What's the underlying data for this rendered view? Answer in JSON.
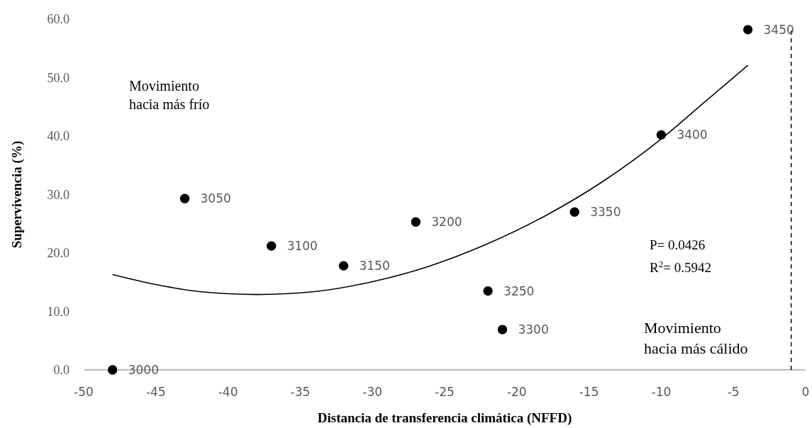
{
  "chart_data": {
    "type": "scatter",
    "xlabel": "Distancia de transferencia climática (NFFD)",
    "ylabel": "Supervivencia  (%)",
    "xlim": [
      -50,
      0
    ],
    "xticks": [
      -50,
      -45,
      -40,
      -35,
      -30,
      -25,
      -20,
      -15,
      -10,
      -5,
      0
    ],
    "ylim": [
      0,
      60
    ],
    "yticks": [
      {
        "value": 0,
        "label": "0.0"
      },
      {
        "value": 10,
        "label": "10.0"
      },
      {
        "value": 20,
        "label": "20.0"
      },
      {
        "value": 30,
        "label": "30.0"
      },
      {
        "value": 40,
        "label": "40.0"
      },
      {
        "value": 50,
        "label": "50.0"
      },
      {
        "value": 60,
        "label": "60.0"
      }
    ],
    "grid": false,
    "marker": "circle",
    "series": [
      {
        "color": "#000000",
        "x": [
          -48,
          -43,
          -37,
          -32,
          -27,
          -22,
          -21,
          -16,
          -10,
          -4
        ],
        "values": [
          0,
          29.3,
          21.2,
          17.8,
          25.3,
          13.5,
          6.9,
          27.0,
          40.2,
          58.2
        ]
      },
      {
        "type": "line",
        "color": "#000000",
        "marker": "none",
        "line_style": "solid",
        "x": [
          -48,
          -45,
          -42,
          -38,
          -34,
          -30,
          -26,
          -22,
          -18,
          -14,
          -10,
          -7,
          -4
        ],
        "values": [
          16.3,
          14.6,
          13.4,
          12.9,
          13.4,
          15.1,
          17.8,
          21.6,
          26.4,
          32.3,
          39.5,
          45.8,
          52.1
        ]
      }
    ],
    "ref_lines": [
      {
        "axis": "x",
        "value": -1,
        "color": "#000000",
        "line_style": "dashed"
      }
    ],
    "annotations": [
      "Movimiento hacia más frío",
      "P= 0.0426",
      "R$^{2}$= 0.5942",
      "Movimiento hacia más cálido",
      {
        "text": "3000",
        "x": -48,
        "y": 0
      },
      {
        "text": "3050",
        "x": -43,
        "y": 29.3
      },
      {
        "text": "3100",
        "x": -37,
        "y": 21.2
      },
      {
        "text": "3150",
        "x": -32,
        "y": 17.8
      },
      {
        "text": "3200",
        "x": -27,
        "y": 25.3
      },
      {
        "text": "3250",
        "x": -22,
        "y": 13.5
      },
      {
        "text": "3300",
        "x": -21,
        "y": 6.9
      },
      {
        "text": "3350",
        "x": -16,
        "y": 27.0
      },
      {
        "text": "3400",
        "x": -10,
        "y": 40.2
      },
      {
        "text": "3450",
        "x": -4,
        "y": 58.2
      }
    ]
  }
}
